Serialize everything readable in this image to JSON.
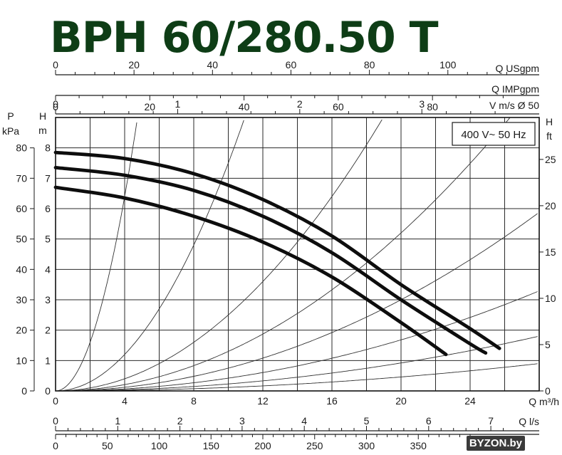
{
  "title": "BPH 60/280.50 T",
  "title_color": "#0e3d16",
  "watermark": "BYZON.by",
  "chart_data": {
    "type": "line",
    "note": "400 V~ 50 Hz",
    "q_axis": {
      "label": "Q m³/h",
      "min": 0,
      "max": 28,
      "ticks": [
        0,
        4,
        8,
        12,
        16,
        20,
        24
      ]
    },
    "h_axis": {
      "label_top": "H",
      "label_bottom": "m",
      "min": 0,
      "max": 9,
      "ticks": [
        0,
        1,
        2,
        3,
        4,
        5,
        6,
        7,
        8
      ]
    },
    "p_axis": {
      "label_top": "P",
      "label_bottom": "kPa",
      "ticks": [
        0,
        10,
        20,
        30,
        40,
        50,
        60,
        70,
        80
      ],
      "per_m": 10
    },
    "hft_axis": {
      "label_top": "H",
      "label_bottom": "ft",
      "ticks": [
        0,
        5,
        10,
        15,
        20,
        25
      ],
      "m_per_unit": 0.3048
    },
    "usgpm_axis": {
      "label": "Q USgpm",
      "ticks": [
        0,
        20,
        40,
        60,
        80,
        100
      ],
      "m3h_per_unit": 0.22712
    },
    "impgpm_axis": {
      "label": "Q IMPgpm",
      "ticks": [
        0,
        20,
        40,
        60,
        80
      ],
      "m3h_per_unit": 0.27277
    },
    "velocity_axis": {
      "label": "V m/s Ø 50",
      "ticks": [
        0,
        1,
        2,
        3
      ],
      "m3h_per_unit": 7.0686
    },
    "ls_axis": {
      "label": "Q l/s",
      "ticks": [
        0,
        1,
        2,
        3,
        4,
        5,
        6,
        7
      ],
      "m3h_per_unit": 3.6
    },
    "lmin_axis": {
      "label": "",
      "ticks": [
        0,
        50,
        100,
        150,
        200,
        250,
        300,
        350
      ],
      "m3h_per_unit": 0.06
    },
    "series": [
      {
        "x": [
          0,
          4,
          8,
          12,
          16,
          20,
          24,
          25.7
        ],
        "y": [
          7.85,
          7.65,
          7.15,
          6.3,
          5.1,
          3.5,
          2.05,
          1.4
        ]
      },
      {
        "x": [
          0,
          4,
          8,
          12,
          16,
          20,
          24,
          24.9
        ],
        "y": [
          7.35,
          7.1,
          6.6,
          5.75,
          4.55,
          3.0,
          1.55,
          1.25
        ]
      },
      {
        "x": [
          0,
          4,
          8,
          12,
          16,
          20,
          22.6
        ],
        "y": [
          6.7,
          6.35,
          5.75,
          4.9,
          3.75,
          2.25,
          1.2
        ]
      }
    ],
    "system_curve_coefficients": [
      0.4,
      0.075,
      0.025,
      0.013,
      0.0075,
      0.0042,
      0.0023,
      0.00115
    ],
    "grid": true,
    "legend": "none"
  }
}
